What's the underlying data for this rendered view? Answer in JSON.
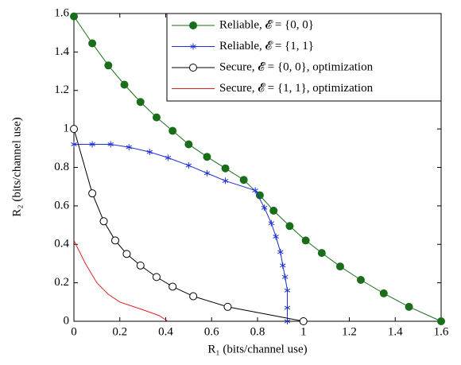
{
  "chart_data": {
    "type": "line",
    "xlabel": "R₁ (bits/channel use)",
    "ylabel": "R₂ (bits/channel use)",
    "xlim": [
      0,
      1.6
    ],
    "ylim": [
      0,
      1.6
    ],
    "xticks": [
      0,
      0.2,
      0.4,
      0.6,
      0.8,
      1,
      1.2,
      1.4,
      1.6
    ],
    "yticks": [
      0,
      0.2,
      0.4,
      0.6,
      0.8,
      1,
      1.2,
      1.4,
      1.6
    ],
    "legend": "upper right",
    "series": [
      {
        "name": "Reliable, 𝓔 = {0, 0}",
        "color": "#1a6e1a",
        "marker": "filled-circle",
        "x": [
          0,
          0.08,
          0.15,
          0.22,
          0.29,
          0.36,
          0.43,
          0.5,
          0.58,
          0.66,
          0.74,
          0.81,
          0.87,
          0.94,
          1.01,
          1.08,
          1.16,
          1.25,
          1.35,
          1.46,
          1.6
        ],
        "values": [
          1.585,
          1.445,
          1.33,
          1.23,
          1.14,
          1.06,
          0.99,
          0.92,
          0.855,
          0.795,
          0.735,
          0.655,
          0.575,
          0.495,
          0.42,
          0.355,
          0.285,
          0.215,
          0.145,
          0.075,
          0
        ]
      },
      {
        "name": "Reliable, 𝓔 = {1, 1}",
        "color": "#1f2fd6",
        "marker": "star",
        "x": [
          0,
          0.08,
          0.16,
          0.24,
          0.33,
          0.41,
          0.5,
          0.58,
          0.66,
          0.79,
          0.83,
          0.86,
          0.88,
          0.9,
          0.91,
          0.92,
          0.93,
          0.93,
          0.93
        ],
        "values": [
          0.92,
          0.92,
          0.92,
          0.905,
          0.88,
          0.85,
          0.81,
          0.77,
          0.73,
          0.68,
          0.59,
          0.51,
          0.44,
          0.36,
          0.29,
          0.23,
          0.16,
          0.07,
          0
        ]
      },
      {
        "name": "Secure, 𝓔 = {0, 0}, optimization",
        "color": "#000000",
        "marker": "open-circle",
        "x": [
          0,
          0.08,
          0.13,
          0.18,
          0.23,
          0.29,
          0.36,
          0.43,
          0.52,
          0.67,
          1.0
        ],
        "values": [
          1,
          0.665,
          0.52,
          0.42,
          0.35,
          0.29,
          0.23,
          0.18,
          0.13,
          0.075,
          0
        ]
      },
      {
        "name": "Secure, 𝓔 = {1, 1}, optimization",
        "color": "#e02020",
        "marker": "none",
        "x": [
          0,
          0.05,
          0.1,
          0.15,
          0.2,
          0.3,
          0.37,
          0.41
        ],
        "values": [
          0.42,
          0.3,
          0.2,
          0.14,
          0.1,
          0.06,
          0.03,
          0
        ]
      }
    ]
  }
}
